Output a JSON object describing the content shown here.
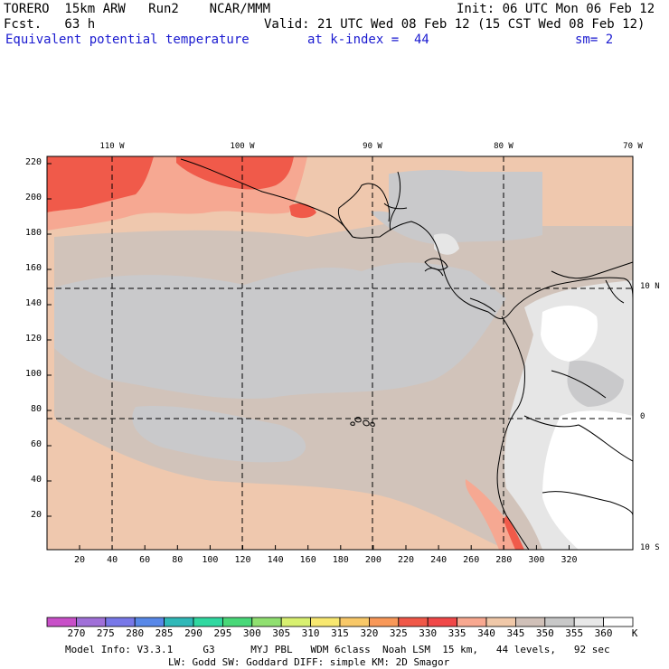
{
  "header": {
    "model": "TORERO  15km ARW   Run2    NCAR/MMM",
    "init": "Init: 06 UTC Mon 06 Feb 12",
    "fcst": "Fcst.   63 h",
    "valid": "Valid: 21 UTC Wed 08 Feb 12 (15 CST Wed 08 Feb 12)",
    "field": "Equivalent potential temperature",
    "level": "at k-index =  44",
    "sm": "sm= 2"
  },
  "axes": {
    "y_ticks": [
      "220",
      "200",
      "180",
      "160",
      "140",
      "120",
      "100",
      "80",
      "60",
      "40",
      "20"
    ],
    "x_ticks": [
      "20",
      "40",
      "60",
      "80",
      "100",
      "120",
      "140",
      "160",
      "180",
      "200",
      "220",
      "240",
      "260",
      "280",
      "300",
      "320"
    ],
    "lon_labels": [
      "110 W",
      "100 W",
      "90 W",
      "80 W",
      "70 W"
    ],
    "lat_labels": [
      "10 N",
      "0",
      "10 S"
    ]
  },
  "colorbar": {
    "levels": [
      "270",
      "275",
      "280",
      "285",
      "290",
      "295",
      "300",
      "305",
      "310",
      "315",
      "320",
      "325",
      "330",
      "335",
      "340",
      "345",
      "350",
      "355",
      "360"
    ],
    "unit": "K",
    "colors": [
      "#c850c8",
      "#a070d8",
      "#7878e8",
      "#5888e8",
      "#30b8b8",
      "#30d8a0",
      "#48d878",
      "#90e070",
      "#d8f070",
      "#f8e870",
      "#f8c868",
      "#f89858",
      "#f05848",
      "#f04848",
      "#f8a890",
      "#f0c8a8",
      "#d0c0b8",
      "#c8c8c8",
      "#e8e8e8",
      "#ffffff"
    ]
  },
  "field_colors": {
    "hot": "#f05a4a",
    "salmon": "#f6a892",
    "peach": "#efc8ae",
    "taupe": "#d1c3ba",
    "gray": "#c9c9cb",
    "light": "#e6e6e6",
    "white": "#ffffff"
  },
  "footer": {
    "line1": "Model Info: V3.3.1     G3      MYJ PBL   WDM 6class  Noah LSM  15 km,   44 levels,   92 sec",
    "line2": "LW: Godd SW: Goddard DIFF: simple KM: 2D Smagor"
  }
}
